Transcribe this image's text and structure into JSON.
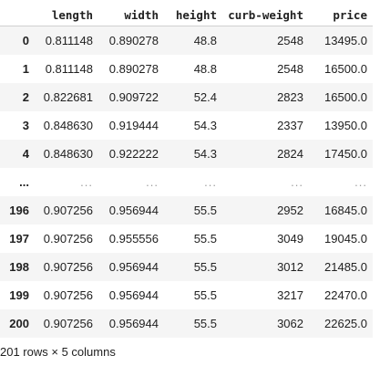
{
  "dataframe": {
    "columns": [
      "length",
      "width",
      "height",
      "curb-weight",
      "price"
    ],
    "rows": [
      {
        "index": "0",
        "cells": [
          "0.811148",
          "0.890278",
          "48.8",
          "2548",
          "13495.0"
        ]
      },
      {
        "index": "1",
        "cells": [
          "0.811148",
          "0.890278",
          "48.8",
          "2548",
          "16500.0"
        ]
      },
      {
        "index": "2",
        "cells": [
          "0.822681",
          "0.909722",
          "52.4",
          "2823",
          "16500.0"
        ]
      },
      {
        "index": "3",
        "cells": [
          "0.848630",
          "0.919444",
          "54.3",
          "2337",
          "13950.0"
        ]
      },
      {
        "index": "4",
        "cells": [
          "0.848630",
          "0.922222",
          "54.3",
          "2824",
          "17450.0"
        ]
      },
      {
        "index": "...",
        "cells": [
          "...",
          "...",
          "...",
          "...",
          "..."
        ]
      },
      {
        "index": "196",
        "cells": [
          "0.907256",
          "0.956944",
          "55.5",
          "2952",
          "16845.0"
        ]
      },
      {
        "index": "197",
        "cells": [
          "0.907256",
          "0.955556",
          "55.5",
          "3049",
          "19045.0"
        ]
      },
      {
        "index": "198",
        "cells": [
          "0.907256",
          "0.956944",
          "55.5",
          "3012",
          "21485.0"
        ]
      },
      {
        "index": "199",
        "cells": [
          "0.907256",
          "0.956944",
          "55.5",
          "3217",
          "22470.0"
        ]
      },
      {
        "index": "200",
        "cells": [
          "0.907256",
          "0.956944",
          "55.5",
          "3062",
          "22625.0"
        ]
      }
    ],
    "shape_text": "201 rows × 5 columns"
  }
}
